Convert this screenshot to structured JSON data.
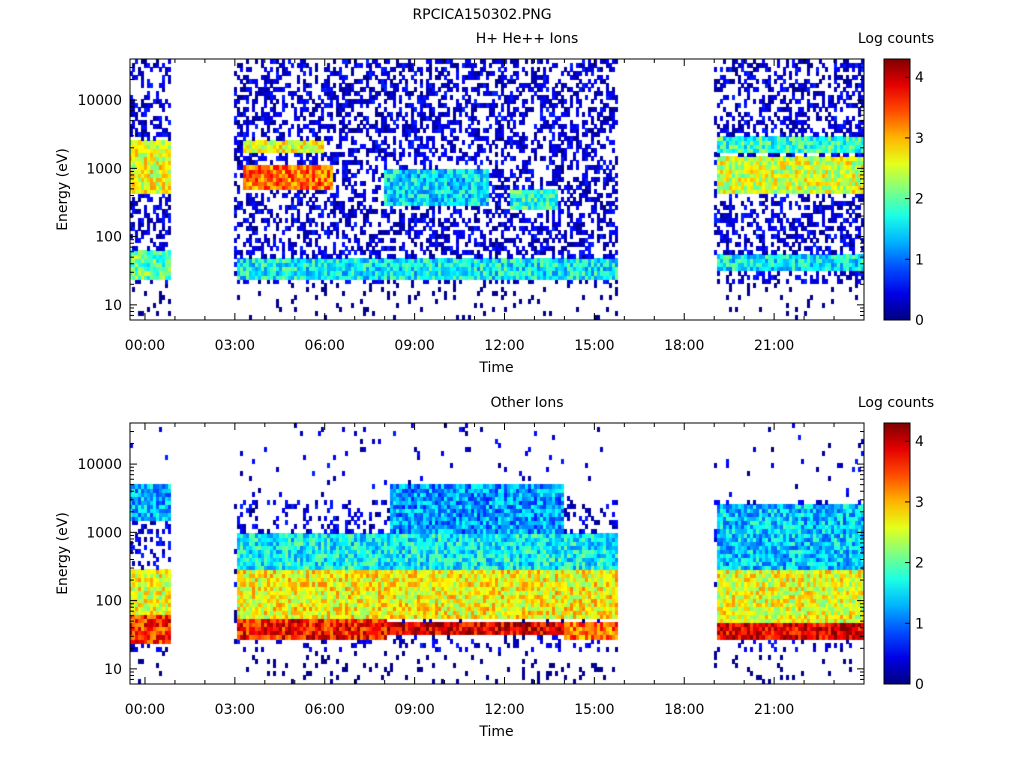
{
  "page_title": "RPCICA150302.PNG",
  "chart_data": [
    {
      "type": "heatmap",
      "title": "H+ He++ Ions",
      "xlabel": "Time",
      "ylabel": "Energy (eV)",
      "y_scale": "log",
      "ylim": [
        6,
        40000
      ],
      "y_ticks": [
        10,
        100,
        1000,
        10000
      ],
      "y_tick_labels": [
        "10",
        "100",
        "1000",
        "10000"
      ],
      "x_range_hours": [
        -0.5,
        24
      ],
      "x_ticks": [
        0,
        3,
        6,
        9,
        12,
        15,
        18,
        21
      ],
      "x_tick_labels": [
        "00:00",
        "03:00",
        "06:00",
        "09:00",
        "12:00",
        "15:00",
        "18:00",
        "21:00"
      ],
      "colorbar_label": "Log counts",
      "colorbar_range": [
        0,
        4.3
      ],
      "colorbar_ticks": [
        0,
        1,
        2,
        3,
        4
      ],
      "colorbar_tick_labels": [
        "0",
        "1",
        "2",
        "3",
        "4"
      ],
      "data_gaps_hours": [
        [
          0.95,
          3.05
        ],
        [
          15.85,
          19.05
        ]
      ],
      "features": [
        {
          "t": [
            -0.5,
            0.9
          ],
          "e": [
            25,
            60
          ],
          "level": 2.0
        },
        {
          "t": [
            -0.5,
            0.9
          ],
          "e": [
            400,
            2500
          ],
          "level": 2.6
        },
        {
          "t": [
            3.1,
            15.8
          ],
          "e": [
            25,
            50
          ],
          "level": 1.6
        },
        {
          "t": [
            3.3,
            6.3
          ],
          "e": [
            500,
            1100
          ],
          "level": 3.3
        },
        {
          "t": [
            3.3,
            6.0
          ],
          "e": [
            1600,
            2400
          ],
          "level": 2.6
        },
        {
          "t": [
            8.0,
            11.5
          ],
          "e": [
            300,
            1000
          ],
          "level": 1.5
        },
        {
          "t": [
            12.2,
            13.8
          ],
          "e": [
            250,
            500
          ],
          "level": 1.8
        },
        {
          "t": [
            19.1,
            24.0
          ],
          "e": [
            30,
            55
          ],
          "level": 1.6
        },
        {
          "t": [
            19.1,
            24.0
          ],
          "e": [
            400,
            1400
          ],
          "level": 2.5
        },
        {
          "t": [
            19.1,
            24.0
          ],
          "e": [
            1800,
            2800
          ],
          "level": 1.8
        }
      ]
    },
    {
      "type": "heatmap",
      "title": "Other Ions",
      "xlabel": "Time",
      "ylabel": "Energy (eV)",
      "y_scale": "log",
      "ylim": [
        6,
        40000
      ],
      "y_ticks": [
        10,
        100,
        1000,
        10000
      ],
      "y_tick_labels": [
        "10",
        "100",
        "1000",
        "10000"
      ],
      "x_range_hours": [
        -0.5,
        24
      ],
      "x_ticks": [
        0,
        3,
        6,
        9,
        12,
        15,
        18,
        21
      ],
      "x_tick_labels": [
        "00:00",
        "03:00",
        "06:00",
        "09:00",
        "12:00",
        "15:00",
        "18:00",
        "21:00"
      ],
      "colorbar_label": "Log counts",
      "colorbar_range": [
        0,
        4.3
      ],
      "colorbar_ticks": [
        0,
        1,
        2,
        3,
        4
      ],
      "colorbar_tick_labels": [
        "0",
        "1",
        "2",
        "3",
        "4"
      ],
      "data_gaps_hours": [
        [
          0.95,
          3.05
        ],
        [
          15.85,
          19.05
        ]
      ],
      "features": [
        {
          "t": [
            -0.5,
            0.9
          ],
          "e": [
            25,
            60
          ],
          "level": 3.6
        },
        {
          "t": [
            -0.5,
            0.9
          ],
          "e": [
            60,
            300
          ],
          "level": 2.6
        },
        {
          "t": [
            -0.5,
            0.9
          ],
          "e": [
            1500,
            5000
          ],
          "level": 1.3
        },
        {
          "t": [
            3.1,
            8.1
          ],
          "e": [
            28,
            55
          ],
          "level": 3.7
        },
        {
          "t": [
            8.1,
            14.0
          ],
          "e": [
            30,
            50
          ],
          "level": 3.9
        },
        {
          "t": [
            14.0,
            15.8
          ],
          "e": [
            28,
            50
          ],
          "level": 3.3
        },
        {
          "t": [
            3.1,
            15.8
          ],
          "e": [
            55,
            300
          ],
          "level": 2.7
        },
        {
          "t": [
            3.1,
            15.8
          ],
          "e": [
            300,
            1000
          ],
          "level": 1.6
        },
        {
          "t": [
            8.2,
            14.0
          ],
          "e": [
            1000,
            5000
          ],
          "level": 1.2
        },
        {
          "t": [
            19.1,
            24.0
          ],
          "e": [
            28,
            50
          ],
          "level": 3.9
        },
        {
          "t": [
            19.1,
            24.0
          ],
          "e": [
            50,
            300
          ],
          "level": 2.6
        },
        {
          "t": [
            19.1,
            24.0
          ],
          "e": [
            300,
            2500
          ],
          "level": 1.4
        }
      ]
    }
  ]
}
